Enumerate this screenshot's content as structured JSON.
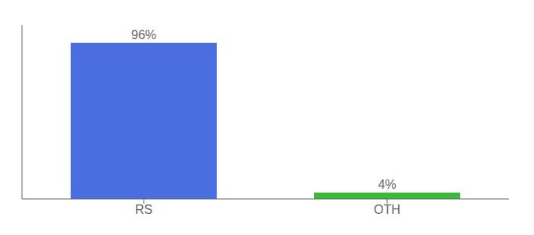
{
  "chart_data": {
    "type": "bar",
    "categories": [
      "RS",
      "OTH"
    ],
    "values": [
      96,
      4
    ],
    "value_labels": [
      "96%",
      "4%"
    ],
    "colors": [
      "#4a6ee0",
      "#3dba3d"
    ],
    "ylim": [
      0,
      107
    ],
    "data_labels": true,
    "tick_labels": "x",
    "grid": false
  }
}
